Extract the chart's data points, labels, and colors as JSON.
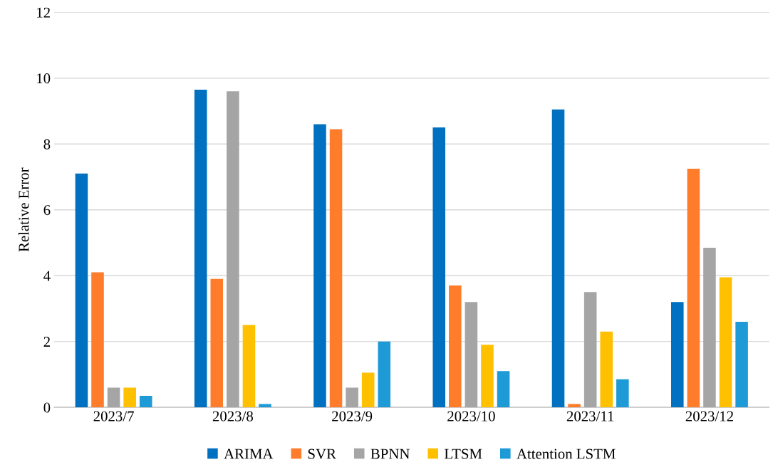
{
  "chart_data": {
    "type": "bar",
    "ylabel": "Relative Error",
    "categories": [
      "2023/7",
      "2023/8",
      "2023/9",
      "2023/10",
      "2023/11",
      "2023/12"
    ],
    "series": [
      {
        "name": "ARIMA",
        "color": "#0070c0",
        "values": [
          7.1,
          9.65,
          8.6,
          8.5,
          9.05,
          3.2
        ]
      },
      {
        "name": "SVR",
        "color": "#ff7c2b",
        "values": [
          4.1,
          3.9,
          8.45,
          3.7,
          0.1,
          7.25
        ]
      },
      {
        "name": "BPNN",
        "color": "#a5a5a5",
        "values": [
          0.6,
          9.6,
          0.6,
          3.2,
          3.5,
          4.85
        ]
      },
      {
        "name": "LTSM",
        "color": "#ffc000",
        "values": [
          0.6,
          2.5,
          1.05,
          1.9,
          2.3,
          3.95
        ]
      },
      {
        "name": "Attention LSTM",
        "color": "#1e9bd7",
        "values": [
          0.35,
          0.1,
          2.0,
          1.1,
          0.85,
          2.6
        ]
      }
    ],
    "ylim": [
      0,
      12
    ],
    "yticks": [
      0,
      2,
      4,
      6,
      8,
      10,
      12
    ],
    "grid": "y",
    "legend": "bottom"
  }
}
